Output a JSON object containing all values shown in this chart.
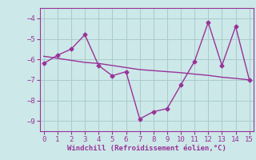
{
  "x": [
    0,
    1,
    2,
    3,
    4,
    5,
    6,
    7,
    8,
    9,
    10,
    11,
    12,
    13,
    14,
    15
  ],
  "y_zigzag": [
    -6.2,
    -5.8,
    -5.5,
    -4.8,
    -6.3,
    -6.8,
    -6.6,
    -8.9,
    -8.55,
    -8.4,
    -7.25,
    -6.1,
    -4.2,
    -6.3,
    -4.4,
    -7.0
  ],
  "y_trend": [
    -5.85,
    -5.95,
    -6.05,
    -6.15,
    -6.2,
    -6.3,
    -6.4,
    -6.5,
    -6.55,
    -6.6,
    -6.65,
    -6.72,
    -6.78,
    -6.87,
    -6.93,
    -7.0
  ],
  "line_color": "#993399",
  "bg_color": "#cce8e8",
  "grid_color": "#aacccc",
  "xlabel": "Windchill (Refroidissement éolien,°C)",
  "ylim": [
    -9.5,
    -3.5
  ],
  "xlim": [
    -0.3,
    15.3
  ],
  "yticks": [
    -9,
    -8,
    -7,
    -6,
    -5,
    -4
  ],
  "xticks": [
    0,
    1,
    2,
    3,
    4,
    5,
    6,
    7,
    8,
    9,
    10,
    11,
    12,
    13,
    14,
    15
  ],
  "marker": "D",
  "markersize": 2.5,
  "linewidth": 1.0,
  "xlabel_color": "#993399",
  "tick_color": "#993399",
  "tick_fontsize": 6.5,
  "label_fontsize": 6.5
}
